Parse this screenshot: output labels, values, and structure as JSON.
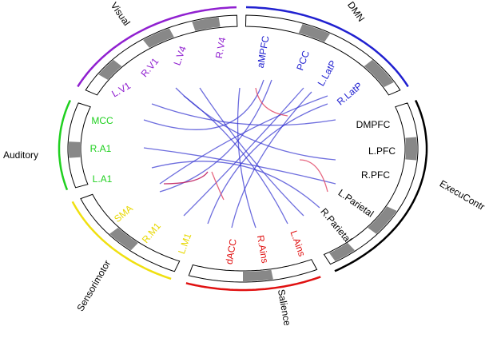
{
  "groups": [
    {
      "label": "DMN",
      "color": "#2020d0",
      "nodes": [
        "aMPFC",
        "PCC",
        "L.LatP",
        "R.LatP"
      ]
    },
    {
      "label": "ExecuContr",
      "color": "#000000",
      "nodes": [
        "DMPFC",
        "L.PFC",
        "R.PFC",
        "L.Parietal",
        "R.Parietal"
      ]
    },
    {
      "label": "Salience",
      "color": "#e01010",
      "nodes": [
        "L.Ains",
        "R.Ains",
        "dACC"
      ]
    },
    {
      "label": "Sensorimotor",
      "color": "#f0e010",
      "nodes": [
        "L.M1",
        "R.M1",
        "SMA"
      ]
    },
    {
      "label": "Auditory",
      "color": "#20d020",
      "nodes": [
        "L.A1",
        "R.A1",
        "MCC"
      ]
    },
    {
      "label": "Visual",
      "color": "#9020d0",
      "nodes": [
        "L.V1",
        "R.V1",
        "L.V4",
        "R.V4"
      ]
    }
  ]
}
